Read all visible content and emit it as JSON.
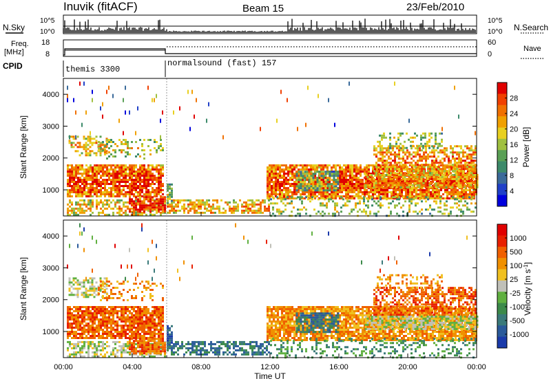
{
  "header": {
    "station": "Inuvik (fitACF)",
    "beam": "Beam 15",
    "date": "23/Feb/2010"
  },
  "status_panels": {
    "nsky_label": "N.Sky",
    "nsky_ticks": [
      "10^5",
      "10^0"
    ],
    "nsearch_label": "N.Search",
    "nsearch_ticks": [
      "10^5",
      "10^0"
    ],
    "freq_label_1": "Freq.",
    "freq_label_2": "[MHz]",
    "freq_ticks": [
      "18",
      "8"
    ],
    "nave_label": "Nave",
    "nave_ticks": [
      "60",
      "0"
    ],
    "cpid_label": "CPID",
    "cpid_segments": [
      {
        "name": "themis 3300",
        "start_hour": 0,
        "end_hour": 6
      },
      {
        "name": "normalsound (fast) 157",
        "start_hour": 6,
        "end_hour": 24
      }
    ]
  },
  "chart_data": [
    {
      "type": "heatmap",
      "panel": "power",
      "xlabel": "Time UT",
      "ylabel": "Slant Range [km]",
      "xlim": [
        0,
        24
      ],
      "ylim": [
        180,
        4500
      ],
      "yticks": [
        1000,
        2000,
        3000,
        4000
      ],
      "xtick_labels": [
        "00:00",
        "04:00",
        "08:00",
        "12:00",
        "16:00",
        "20:00",
        "00:00"
      ],
      "colorbar": {
        "label": "Power [dB]",
        "ticks": [
          4,
          8,
          12,
          16,
          20,
          24,
          28
        ],
        "range": [
          0,
          30
        ],
        "colors": [
          "#0000dd",
          "#2040c8",
          "#3a6a9a",
          "#3c8a6a",
          "#5aa055",
          "#a0c040",
          "#e8d020",
          "#f0a000",
          "#f07000",
          "#f04000",
          "#e00000"
        ]
      }
    },
    {
      "type": "heatmap",
      "panel": "velocity",
      "xlabel": "Time UT",
      "ylabel": "Slant Range [km]",
      "xlim": [
        0,
        24
      ],
      "ylim": [
        180,
        4500
      ],
      "yticks": [
        1000,
        2000,
        3000,
        4000
      ],
      "xtick_labels": [
        "00:00",
        "04:00",
        "08:00",
        "12:00",
        "16:00",
        "20:00",
        "00:00"
      ],
      "colorbar": {
        "label": "Velocity [m s^-1]",
        "tick_labels": [
          "1000",
          "500",
          "100",
          "25",
          "-25",
          "-100",
          "-500",
          "-1000"
        ],
        "colors": [
          "#1a3aaa",
          "#2a5a9a",
          "#3a7a7a",
          "#3c8a4a",
          "#60b040",
          "#c0c0b8",
          "#f0c020",
          "#f09000",
          "#f06000",
          "#e82000",
          "#e00000"
        ]
      }
    }
  ]
}
